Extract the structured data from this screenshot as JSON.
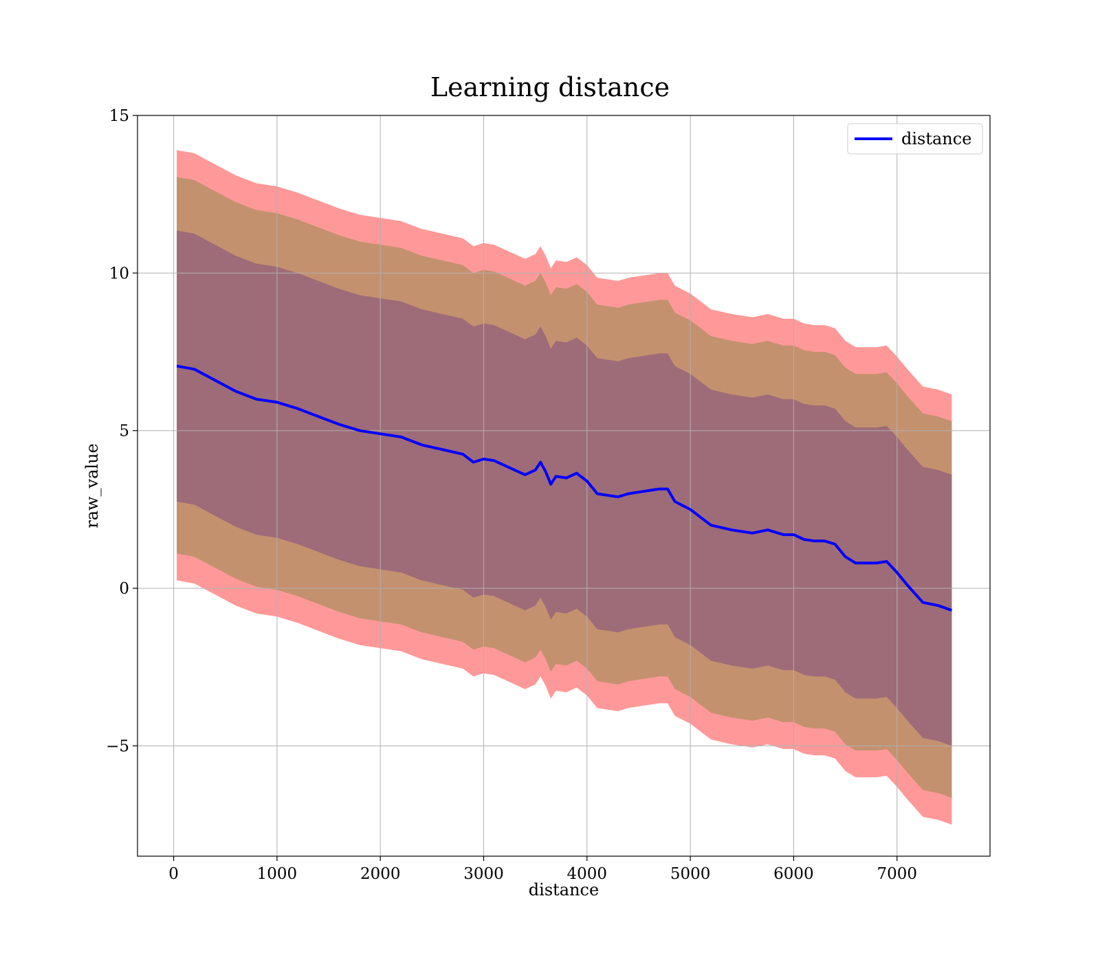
{
  "chart_data": {
    "type": "line",
    "title": "Learning distance",
    "xlabel": "distance",
    "ylabel": "raw_value",
    "xlim": [
      -350,
      7900
    ],
    "ylim": [
      -8.5,
      15
    ],
    "xticks": [
      0,
      1000,
      2000,
      3000,
      4000,
      5000,
      6000,
      7000
    ],
    "yticks": [
      -5,
      0,
      5,
      10,
      15
    ],
    "grid": true,
    "legend": {
      "position": "top-right",
      "entries": [
        "distance"
      ]
    },
    "colors": {
      "line": "#0000ff",
      "band_outer": "#ff9999",
      "band_middle": "#c4916f",
      "band_inner": "#9e6c78"
    },
    "series": [
      {
        "name": "distance",
        "x": [
          30,
          200,
          400,
          600,
          800,
          1000,
          1200,
          1400,
          1600,
          1800,
          2000,
          2200,
          2400,
          2600,
          2800,
          2900,
          3000,
          3100,
          3200,
          3300,
          3400,
          3500,
          3550,
          3600,
          3650,
          3700,
          3800,
          3900,
          4000,
          4100,
          4200,
          4300,
          4400,
          4500,
          4600,
          4700,
          4780,
          4850,
          5000,
          5200,
          5400,
          5600,
          5750,
          5900,
          6000,
          6100,
          6200,
          6300,
          6400,
          6500,
          6600,
          6700,
          6800,
          6900,
          7000,
          7100,
          7250,
          7400,
          7530
        ],
        "y": [
          7.05,
          6.95,
          6.6,
          6.25,
          6.0,
          5.9,
          5.7,
          5.45,
          5.2,
          5.0,
          4.9,
          4.8,
          4.55,
          4.4,
          4.25,
          4.0,
          4.1,
          4.05,
          3.9,
          3.75,
          3.6,
          3.75,
          4.0,
          3.7,
          3.3,
          3.55,
          3.5,
          3.65,
          3.4,
          3.0,
          2.95,
          2.9,
          3.0,
          3.05,
          3.1,
          3.15,
          3.15,
          2.75,
          2.5,
          2.0,
          1.85,
          1.75,
          1.85,
          1.7,
          1.7,
          1.55,
          1.5,
          1.5,
          1.4,
          1.0,
          0.8,
          0.8,
          0.8,
          0.85,
          0.5,
          0.1,
          -0.45,
          -0.55,
          -0.7
        ]
      }
    ],
    "bands": [
      {
        "role": "outer",
        "lower_offset": -6.8,
        "upper_offset": 6.85
      },
      {
        "role": "middle",
        "lower_offset": -5.95,
        "upper_offset": 6.0
      },
      {
        "role": "inner",
        "lower_offset": -4.3,
        "upper_offset": 4.3
      }
    ]
  }
}
